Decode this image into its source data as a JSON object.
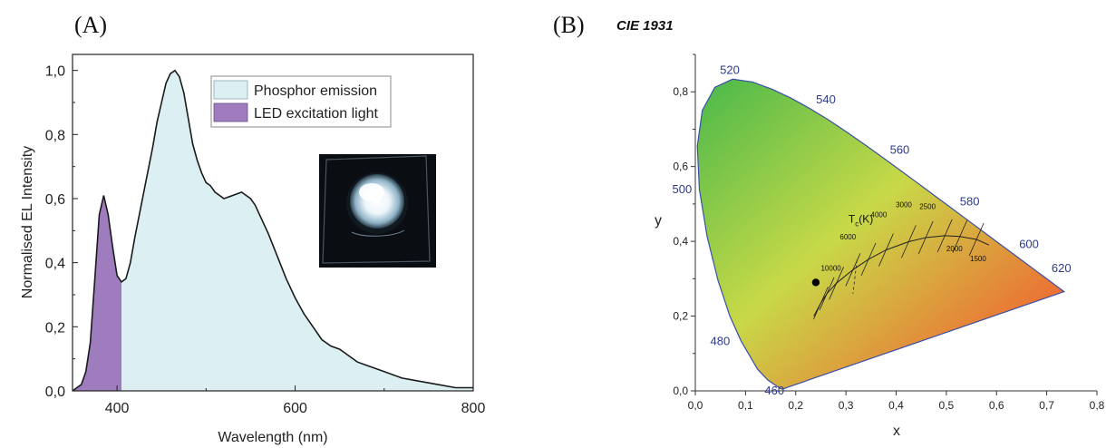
{
  "panel_a_label": "(A)",
  "panel_b_label": "(B)",
  "cie_title": "CIE 1931",
  "chart_data": [
    {
      "type": "area",
      "xlabel": "Wavelength (nm)",
      "ylabel": "Normalised EL Intensity",
      "xlim": [
        350,
        800
      ],
      "ylim": [
        0,
        1.05
      ],
      "xticks": [
        400,
        600,
        800
      ],
      "xtick_labels": [
        "400",
        "600",
        "800"
      ],
      "yticks": [
        0,
        0.2,
        0.4,
        0.6,
        0.8,
        1.0
      ],
      "ytick_labels": [
        "0,0",
        "0,2",
        "0,4",
        "0,6",
        "0,8",
        "1,0"
      ],
      "legend_position": "top-right",
      "colors": {
        "phosphor": "#dcf0f4",
        "led": "#9f7cbd",
        "line": "#1a1a1a"
      },
      "series": [
        {
          "name": "LED excitation light",
          "x": [
            350,
            360,
            365,
            370,
            375,
            380,
            385,
            390,
            395,
            400,
            405
          ],
          "y": [
            0.0,
            0.02,
            0.06,
            0.15,
            0.35,
            0.55,
            0.61,
            0.55,
            0.45,
            0.36,
            0.34
          ]
        },
        {
          "name": "Phosphor emission",
          "x": [
            405,
            410,
            415,
            420,
            425,
            430,
            435,
            440,
            445,
            450,
            455,
            460,
            465,
            470,
            475,
            480,
            485,
            490,
            495,
            500,
            505,
            510,
            520,
            530,
            540,
            545,
            550,
            555,
            560,
            570,
            580,
            590,
            600,
            610,
            620,
            630,
            640,
            650,
            660,
            670,
            680,
            690,
            700,
            720,
            740,
            760,
            780,
            800
          ],
          "y": [
            0.34,
            0.35,
            0.4,
            0.48,
            0.55,
            0.62,
            0.69,
            0.76,
            0.84,
            0.9,
            0.96,
            0.99,
            1.0,
            0.98,
            0.93,
            0.85,
            0.77,
            0.72,
            0.68,
            0.65,
            0.64,
            0.62,
            0.6,
            0.61,
            0.62,
            0.61,
            0.6,
            0.58,
            0.55,
            0.49,
            0.42,
            0.35,
            0.29,
            0.24,
            0.2,
            0.16,
            0.14,
            0.13,
            0.11,
            0.09,
            0.08,
            0.07,
            0.06,
            0.04,
            0.03,
            0.02,
            0.01,
            0.01
          ]
        }
      ],
      "inset": "photo of glowing white LED"
    },
    {
      "type": "scatter",
      "xlabel": "x",
      "ylabel": "y",
      "xlim": [
        0,
        0.8
      ],
      "ylim": [
        0,
        0.9
      ],
      "xticks": [
        0,
        0.1,
        0.2,
        0.3,
        0.4,
        0.5,
        0.6,
        0.7,
        0.8
      ],
      "xtick_labels": [
        "0,0",
        "0,1",
        "0,2",
        "0,3",
        "0,4",
        "0,5",
        "0,6",
        "0,7",
        "0,8"
      ],
      "yticks": [
        0,
        0.2,
        0.4,
        0.6,
        0.8
      ],
      "ytick_labels": [
        "0,0",
        "0,2",
        "0,4",
        "0,6",
        "0,8"
      ],
      "point": {
        "x": 0.24,
        "y": 0.29
      },
      "wavelength_labels": [
        {
          "text": "460",
          "x": 0.1741,
          "y": 0.005
        },
        {
          "text": "480",
          "x": 0.0913,
          "y": 0.1327
        },
        {
          "text": "500",
          "x": 0.0082,
          "y": 0.5384
        },
        {
          "text": "520",
          "x": 0.0743,
          "y": 0.8338
        },
        {
          "text": "540",
          "x": 0.2296,
          "y": 0.7543
        },
        {
          "text": "560",
          "x": 0.3731,
          "y": 0.6245
        },
        {
          "text": "580",
          "x": 0.5125,
          "y": 0.4866
        },
        {
          "text": "600",
          "x": 0.627,
          "y": 0.3725
        },
        {
          "text": "620",
          "x": 0.6915,
          "y": 0.3083
        }
      ],
      "planckian_locus": [
        [
          0.236,
          0.2
        ],
        [
          0.25,
          0.235
        ],
        [
          0.262,
          0.26
        ],
        [
          0.281,
          0.288
        ],
        [
          0.314,
          0.324
        ],
        [
          0.345,
          0.352
        ],
        [
          0.38,
          0.377
        ],
        [
          0.425,
          0.399
        ],
        [
          0.459,
          0.41
        ],
        [
          0.497,
          0.415
        ],
        [
          0.527,
          0.413
        ],
        [
          0.56,
          0.405
        ],
        [
          0.585,
          0.39
        ]
      ],
      "cct_title": "T",
      "cct_sub": "c",
      "cct_unit": "(K)",
      "cct_labels": [
        {
          "text": "10000",
          "x": 0.281,
          "y": 0.288
        },
        {
          "text": "6000",
          "x": 0.322,
          "y": 0.332
        },
        {
          "text": "4000",
          "x": 0.38,
          "y": 0.377
        },
        {
          "text": "3000",
          "x": 0.437,
          "y": 0.404
        },
        {
          "text": "2500",
          "x": 0.477,
          "y": 0.414
        },
        {
          "text": "2000",
          "x": 0.527,
          "y": 0.413
        },
        {
          "text": "1500",
          "x": 0.585,
          "y": 0.39
        }
      ]
    }
  ]
}
